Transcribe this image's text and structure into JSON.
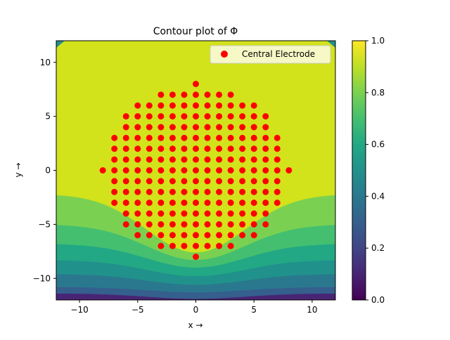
{
  "chart_data": {
    "type": "heatmap",
    "title": "Contour plot of Φ",
    "xlabel": "x →",
    "ylabel": "y →",
    "xlim": [
      -12,
      12
    ],
    "ylim": [
      -12,
      12
    ],
    "x_ticks": [
      -10,
      -5,
      0,
      5,
      10
    ],
    "x_tick_labels": [
      "−10",
      "−5",
      "0",
      "5",
      "10"
    ],
    "y_ticks": [
      -10,
      -5,
      0,
      5,
      10
    ],
    "y_tick_labels": [
      "−10",
      "−5",
      "0",
      "5",
      "10"
    ],
    "grid": false,
    "legend": {
      "position": "upper right",
      "entries": [
        "Central Electrode"
      ]
    },
    "colorbar": {
      "range": [
        0,
        1
      ],
      "ticks": [
        0.0,
        0.2,
        0.4,
        0.6,
        0.8,
        1.0
      ],
      "tick_labels": [
        "0.0",
        "0.2",
        "0.4",
        "0.6",
        "0.8",
        "1.0"
      ],
      "colormap": "viridis"
    },
    "contour_levels": [
      {
        "min": 0.0,
        "max": 0.1,
        "color": "#482475"
      },
      {
        "min": 0.1,
        "max": 0.2,
        "color": "#414487"
      },
      {
        "min": 0.2,
        "max": 0.3,
        "color": "#355f8d"
      },
      {
        "min": 0.3,
        "max": 0.4,
        "color": "#2a788e"
      },
      {
        "min": 0.4,
        "max": 0.5,
        "color": "#21918c"
      },
      {
        "min": 0.5,
        "max": 0.6,
        "color": "#22a884"
      },
      {
        "min": 0.6,
        "max": 0.7,
        "color": "#44bf70"
      },
      {
        "min": 0.7,
        "max": 0.8,
        "color": "#7ad151"
      },
      {
        "min": 0.8,
        "max": 1.0,
        "color": "#d2e21b"
      }
    ],
    "bands_y_at_edge": [
      -2.2,
      -5.0,
      -6.8,
      -8.3,
      -9.6,
      -10.8
    ],
    "bands_y_at_center": [
      -7.6,
      -8.3,
      -9.0,
      -9.8,
      -10.6,
      -11.3
    ],
    "series": [
      {
        "name": "Central Electrode",
        "type": "scatter",
        "color": "#ff0000",
        "points": [
          [
            -8,
            0
          ],
          [
            8,
            0
          ],
          [
            0,
            8
          ],
          [
            0,
            -8
          ],
          [
            -7,
            -3
          ],
          [
            -7,
            -2
          ],
          [
            -7,
            -1
          ],
          [
            -7,
            0
          ],
          [
            -7,
            1
          ],
          [
            -7,
            2
          ],
          [
            -7,
            3
          ],
          [
            7,
            -3
          ],
          [
            7,
            -2
          ],
          [
            7,
            -1
          ],
          [
            7,
            0
          ],
          [
            7,
            1
          ],
          [
            7,
            2
          ],
          [
            7,
            3
          ],
          [
            -6,
            -5
          ],
          [
            -6,
            -4
          ],
          [
            -6,
            -3
          ],
          [
            -6,
            -2
          ],
          [
            -6,
            -1
          ],
          [
            -6,
            0
          ],
          [
            -6,
            1
          ],
          [
            -6,
            2
          ],
          [
            -6,
            3
          ],
          [
            -6,
            4
          ],
          [
            -6,
            5
          ],
          [
            6,
            -5
          ],
          [
            6,
            -4
          ],
          [
            6,
            -3
          ],
          [
            6,
            -2
          ],
          [
            6,
            -1
          ],
          [
            6,
            0
          ],
          [
            6,
            1
          ],
          [
            6,
            2
          ],
          [
            6,
            3
          ],
          [
            6,
            4
          ],
          [
            6,
            5
          ],
          [
            -5,
            -6
          ],
          [
            -5,
            -5
          ],
          [
            -5,
            -4
          ],
          [
            -5,
            -3
          ],
          [
            -5,
            -2
          ],
          [
            -5,
            -1
          ],
          [
            -5,
            0
          ],
          [
            -5,
            1
          ],
          [
            -5,
            2
          ],
          [
            -5,
            3
          ],
          [
            -5,
            4
          ],
          [
            -5,
            5
          ],
          [
            -5,
            6
          ],
          [
            -4,
            -6
          ],
          [
            -4,
            -5
          ],
          [
            -4,
            -4
          ],
          [
            -4,
            -3
          ],
          [
            -4,
            -2
          ],
          [
            -4,
            -1
          ],
          [
            -4,
            0
          ],
          [
            -4,
            1
          ],
          [
            -4,
            2
          ],
          [
            -4,
            3
          ],
          [
            -4,
            4
          ],
          [
            -4,
            5
          ],
          [
            -4,
            6
          ],
          [
            4,
            -6
          ],
          [
            4,
            -5
          ],
          [
            4,
            -4
          ],
          [
            4,
            -3
          ],
          [
            4,
            -2
          ],
          [
            4,
            -1
          ],
          [
            4,
            0
          ],
          [
            4,
            1
          ],
          [
            4,
            2
          ],
          [
            4,
            3
          ],
          [
            4,
            4
          ],
          [
            4,
            5
          ],
          [
            4,
            6
          ],
          [
            5,
            -6
          ],
          [
            5,
            -5
          ],
          [
            5,
            -4
          ],
          [
            5,
            -3
          ],
          [
            5,
            -2
          ],
          [
            5,
            -1
          ],
          [
            5,
            0
          ],
          [
            5,
            1
          ],
          [
            5,
            2
          ],
          [
            5,
            3
          ],
          [
            5,
            4
          ],
          [
            5,
            5
          ],
          [
            5,
            6
          ],
          [
            -3,
            -7
          ],
          [
            -3,
            -6
          ],
          [
            -3,
            -5
          ],
          [
            -3,
            -4
          ],
          [
            -3,
            -3
          ],
          [
            -3,
            -2
          ],
          [
            -3,
            -1
          ],
          [
            -3,
            0
          ],
          [
            -3,
            1
          ],
          [
            -3,
            2
          ],
          [
            -3,
            3
          ],
          [
            -3,
            4
          ],
          [
            -3,
            5
          ],
          [
            -3,
            6
          ],
          [
            -3,
            7
          ],
          [
            -2,
            -7
          ],
          [
            -2,
            -6
          ],
          [
            -2,
            -5
          ],
          [
            -2,
            -4
          ],
          [
            -2,
            -3
          ],
          [
            -2,
            -2
          ],
          [
            -2,
            -1
          ],
          [
            -2,
            0
          ],
          [
            -2,
            1
          ],
          [
            -2,
            2
          ],
          [
            -2,
            3
          ],
          [
            -2,
            4
          ],
          [
            -2,
            5
          ],
          [
            -2,
            6
          ],
          [
            -2,
            7
          ],
          [
            -1,
            -7
          ],
          [
            -1,
            -6
          ],
          [
            -1,
            -5
          ],
          [
            -1,
            -4
          ],
          [
            -1,
            -3
          ],
          [
            -1,
            -2
          ],
          [
            -1,
            -1
          ],
          [
            -1,
            0
          ],
          [
            -1,
            1
          ],
          [
            -1,
            2
          ],
          [
            -1,
            3
          ],
          [
            -1,
            4
          ],
          [
            -1,
            5
          ],
          [
            -1,
            6
          ],
          [
            -1,
            7
          ],
          [
            0,
            -7
          ],
          [
            0,
            -6
          ],
          [
            0,
            -5
          ],
          [
            0,
            -4
          ],
          [
            0,
            -3
          ],
          [
            0,
            -2
          ],
          [
            0,
            -1
          ],
          [
            0,
            0
          ],
          [
            0,
            1
          ],
          [
            0,
            2
          ],
          [
            0,
            3
          ],
          [
            0,
            4
          ],
          [
            0,
            5
          ],
          [
            0,
            6
          ],
          [
            0,
            7
          ],
          [
            1,
            -7
          ],
          [
            1,
            -6
          ],
          [
            1,
            -5
          ],
          [
            1,
            -4
          ],
          [
            1,
            -3
          ],
          [
            1,
            -2
          ],
          [
            1,
            -1
          ],
          [
            1,
            0
          ],
          [
            1,
            1
          ],
          [
            1,
            2
          ],
          [
            1,
            3
          ],
          [
            1,
            4
          ],
          [
            1,
            5
          ],
          [
            1,
            6
          ],
          [
            1,
            7
          ],
          [
            2,
            -7
          ],
          [
            2,
            -6
          ],
          [
            2,
            -5
          ],
          [
            2,
            -4
          ],
          [
            2,
            -3
          ],
          [
            2,
            -2
          ],
          [
            2,
            -1
          ],
          [
            2,
            0
          ],
          [
            2,
            1
          ],
          [
            2,
            2
          ],
          [
            2,
            3
          ],
          [
            2,
            4
          ],
          [
            2,
            5
          ],
          [
            2,
            6
          ],
          [
            2,
            7
          ],
          [
            3,
            -7
          ],
          [
            3,
            -6
          ],
          [
            3,
            -5
          ],
          [
            3,
            -4
          ],
          [
            3,
            -3
          ],
          [
            3,
            -2
          ],
          [
            3,
            -1
          ],
          [
            3,
            0
          ],
          [
            3,
            1
          ],
          [
            3,
            2
          ],
          [
            3,
            3
          ],
          [
            3,
            4
          ],
          [
            3,
            5
          ],
          [
            3,
            6
          ],
          [
            3,
            7
          ]
        ]
      }
    ]
  }
}
